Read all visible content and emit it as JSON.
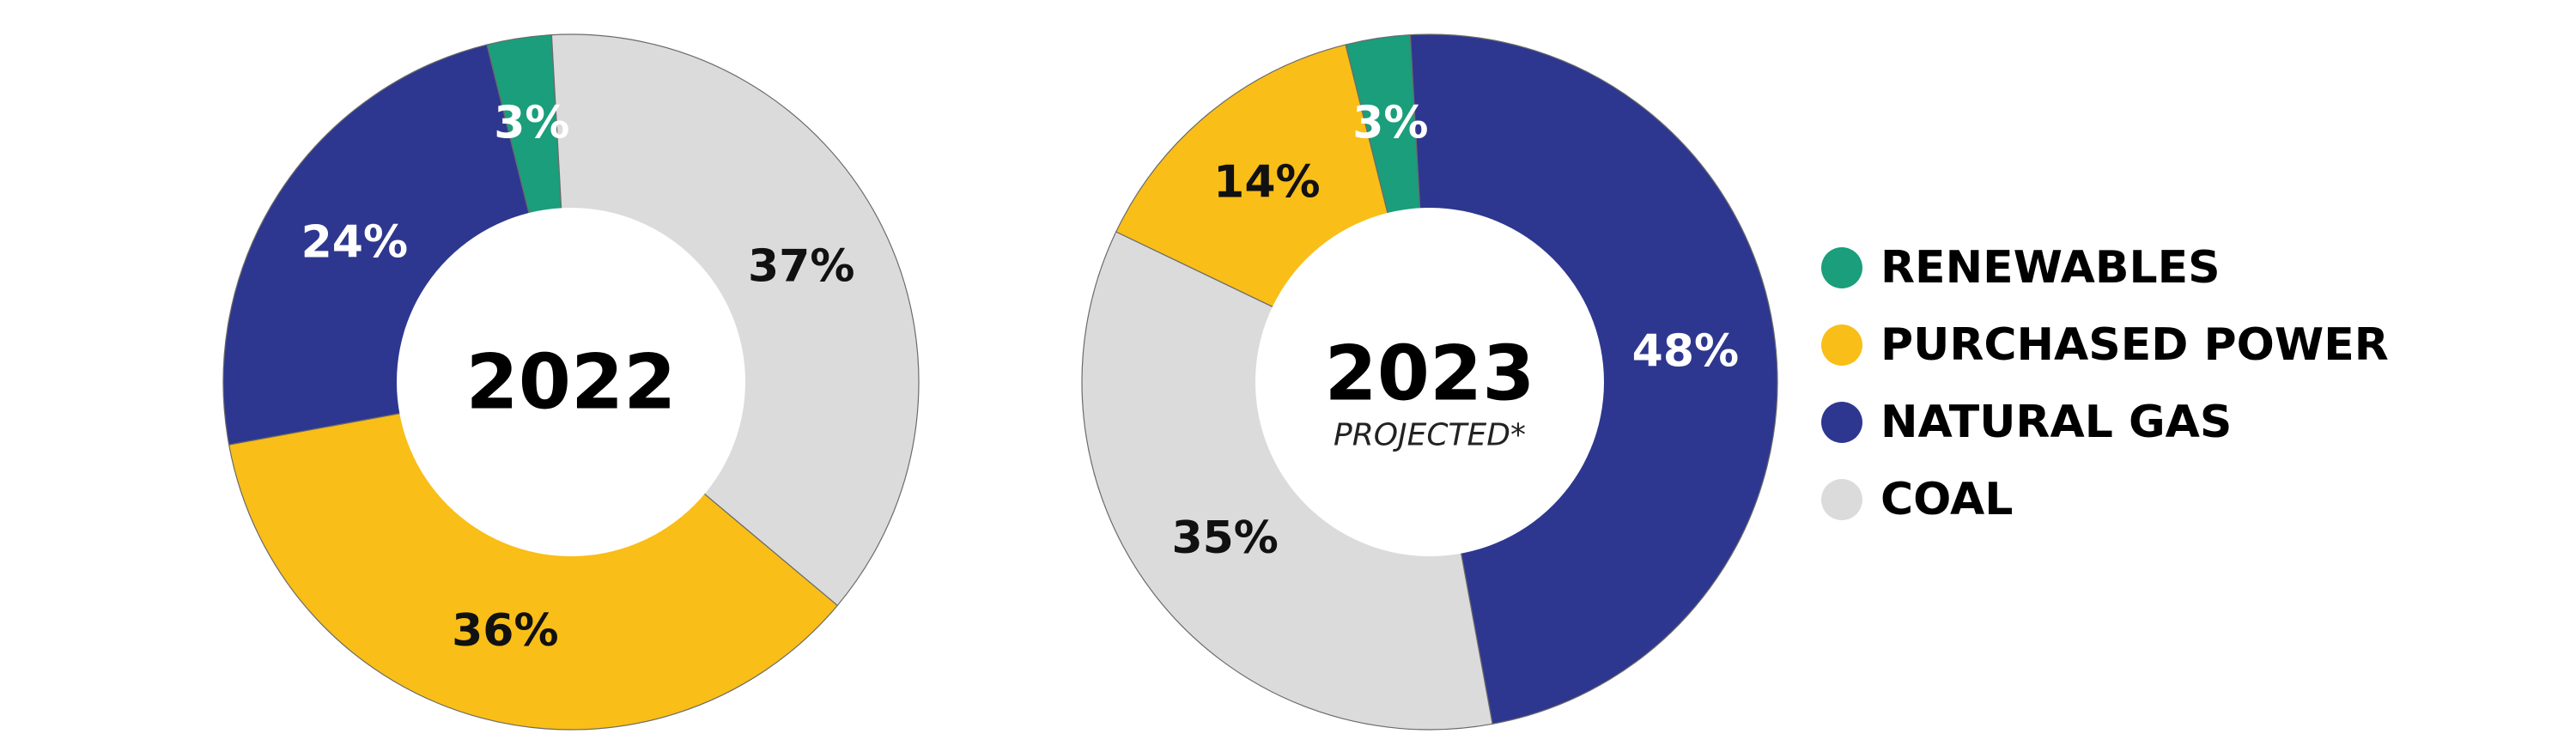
{
  "chart_data": [
    {
      "type": "pie",
      "center_title": "2022",
      "center_subtitle": "",
      "slices": [
        {
          "category": "RENEWABLES",
          "value": 3,
          "label": "3%"
        },
        {
          "category": "COAL",
          "value": 37,
          "label": "37%"
        },
        {
          "category": "PURCHASED POWER",
          "value": 36,
          "label": "36%"
        },
        {
          "category": "NATURAL GAS",
          "value": 24,
          "label": "24%"
        }
      ]
    },
    {
      "type": "pie",
      "center_title": "2023",
      "center_subtitle": "PROJECTED*",
      "slices": [
        {
          "category": "RENEWABLES",
          "value": 3,
          "label": "3%"
        },
        {
          "category": "NATURAL GAS",
          "value": 48,
          "label": "48%"
        },
        {
          "category": "COAL",
          "value": 35,
          "label": "35%"
        },
        {
          "category": "PURCHASED POWER",
          "value": 14,
          "label": "14%"
        }
      ]
    }
  ],
  "legend": [
    {
      "name": "RENEWABLES",
      "color": "#1a9e7b"
    },
    {
      "name": "PURCHASED POWER",
      "color": "#f9be17"
    },
    {
      "name": "NATURAL GAS",
      "color": "#2e378f"
    },
    {
      "name": "COAL",
      "color": "#dcdbdb"
    }
  ],
  "label_colors": {
    "RENEWABLES": "#ffffff",
    "PURCHASED POWER": "#111111",
    "NATURAL GAS": "#ffffff",
    "COAL": "#111111"
  }
}
